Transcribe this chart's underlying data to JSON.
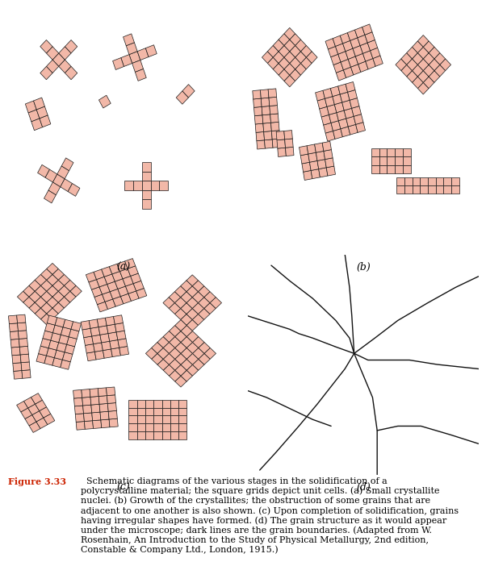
{
  "bg_color": "#d4d4d4",
  "cell_color": "#f2b8a8",
  "cell_edge_color": "#1a1a1a",
  "cell_edge_lw": 0.5,
  "label_a": "(a)",
  "label_b": "(b)",
  "label_c": "(c)",
  "label_d": "(d)",
  "caption_figure": "Figure 3.33",
  "figure_color": "#cc2200",
  "caption_rest": "  Schematic diagrams of the various stages in the solidification of a\npolycrystalline material; the square grids depict unit cells. (a) Small crystallite\nnuclei. (b) Growth of the crystallites; the obstruction of some grains that are\nadjacent to one another is also shown. (c) Upon completion of solidification, grains\nhaving irregular shapes have formed. (d) The grain structure as it would appear\nunder the microscope; dark lines are the grain boundaries. (Adapted from W.\nRosenhain, An Introduction to the Study of Physical Metallurgy, 2nd edition,\nConstable & Company Ltd., London, 1915.)",
  "panel_bg": "#d4d4d4",
  "boundary_color": "#111111",
  "boundary_lw": 1.0
}
